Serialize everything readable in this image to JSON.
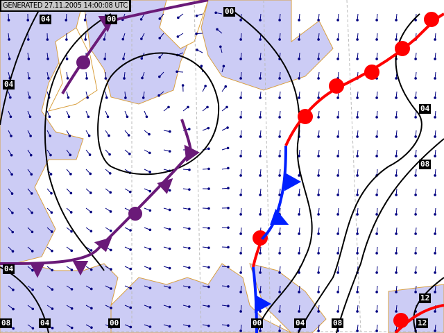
{
  "header": {
    "generated": "GENERATED 27.11.2005 14:00:08 UTC"
  },
  "colors": {
    "sea": "#ccccf5",
    "land": "#ffffff",
    "border": "#d9a040",
    "isobar": "#000000",
    "wind_arrow": "#000080",
    "occluded_front": "#6a1a78",
    "warm_front": "#ff0000",
    "cold_front": "#0020ff"
  },
  "isobar_labels": {
    "top": [
      "04",
      "00",
      "00"
    ],
    "left": [
      "04",
      "04"
    ],
    "right": [
      "04",
      "08",
      "12"
    ],
    "bottom": [
      "08",
      "04",
      "00",
      "00",
      "04",
      "08",
      "12"
    ]
  },
  "fronts": [
    "occluded",
    "warm",
    "cold"
  ]
}
